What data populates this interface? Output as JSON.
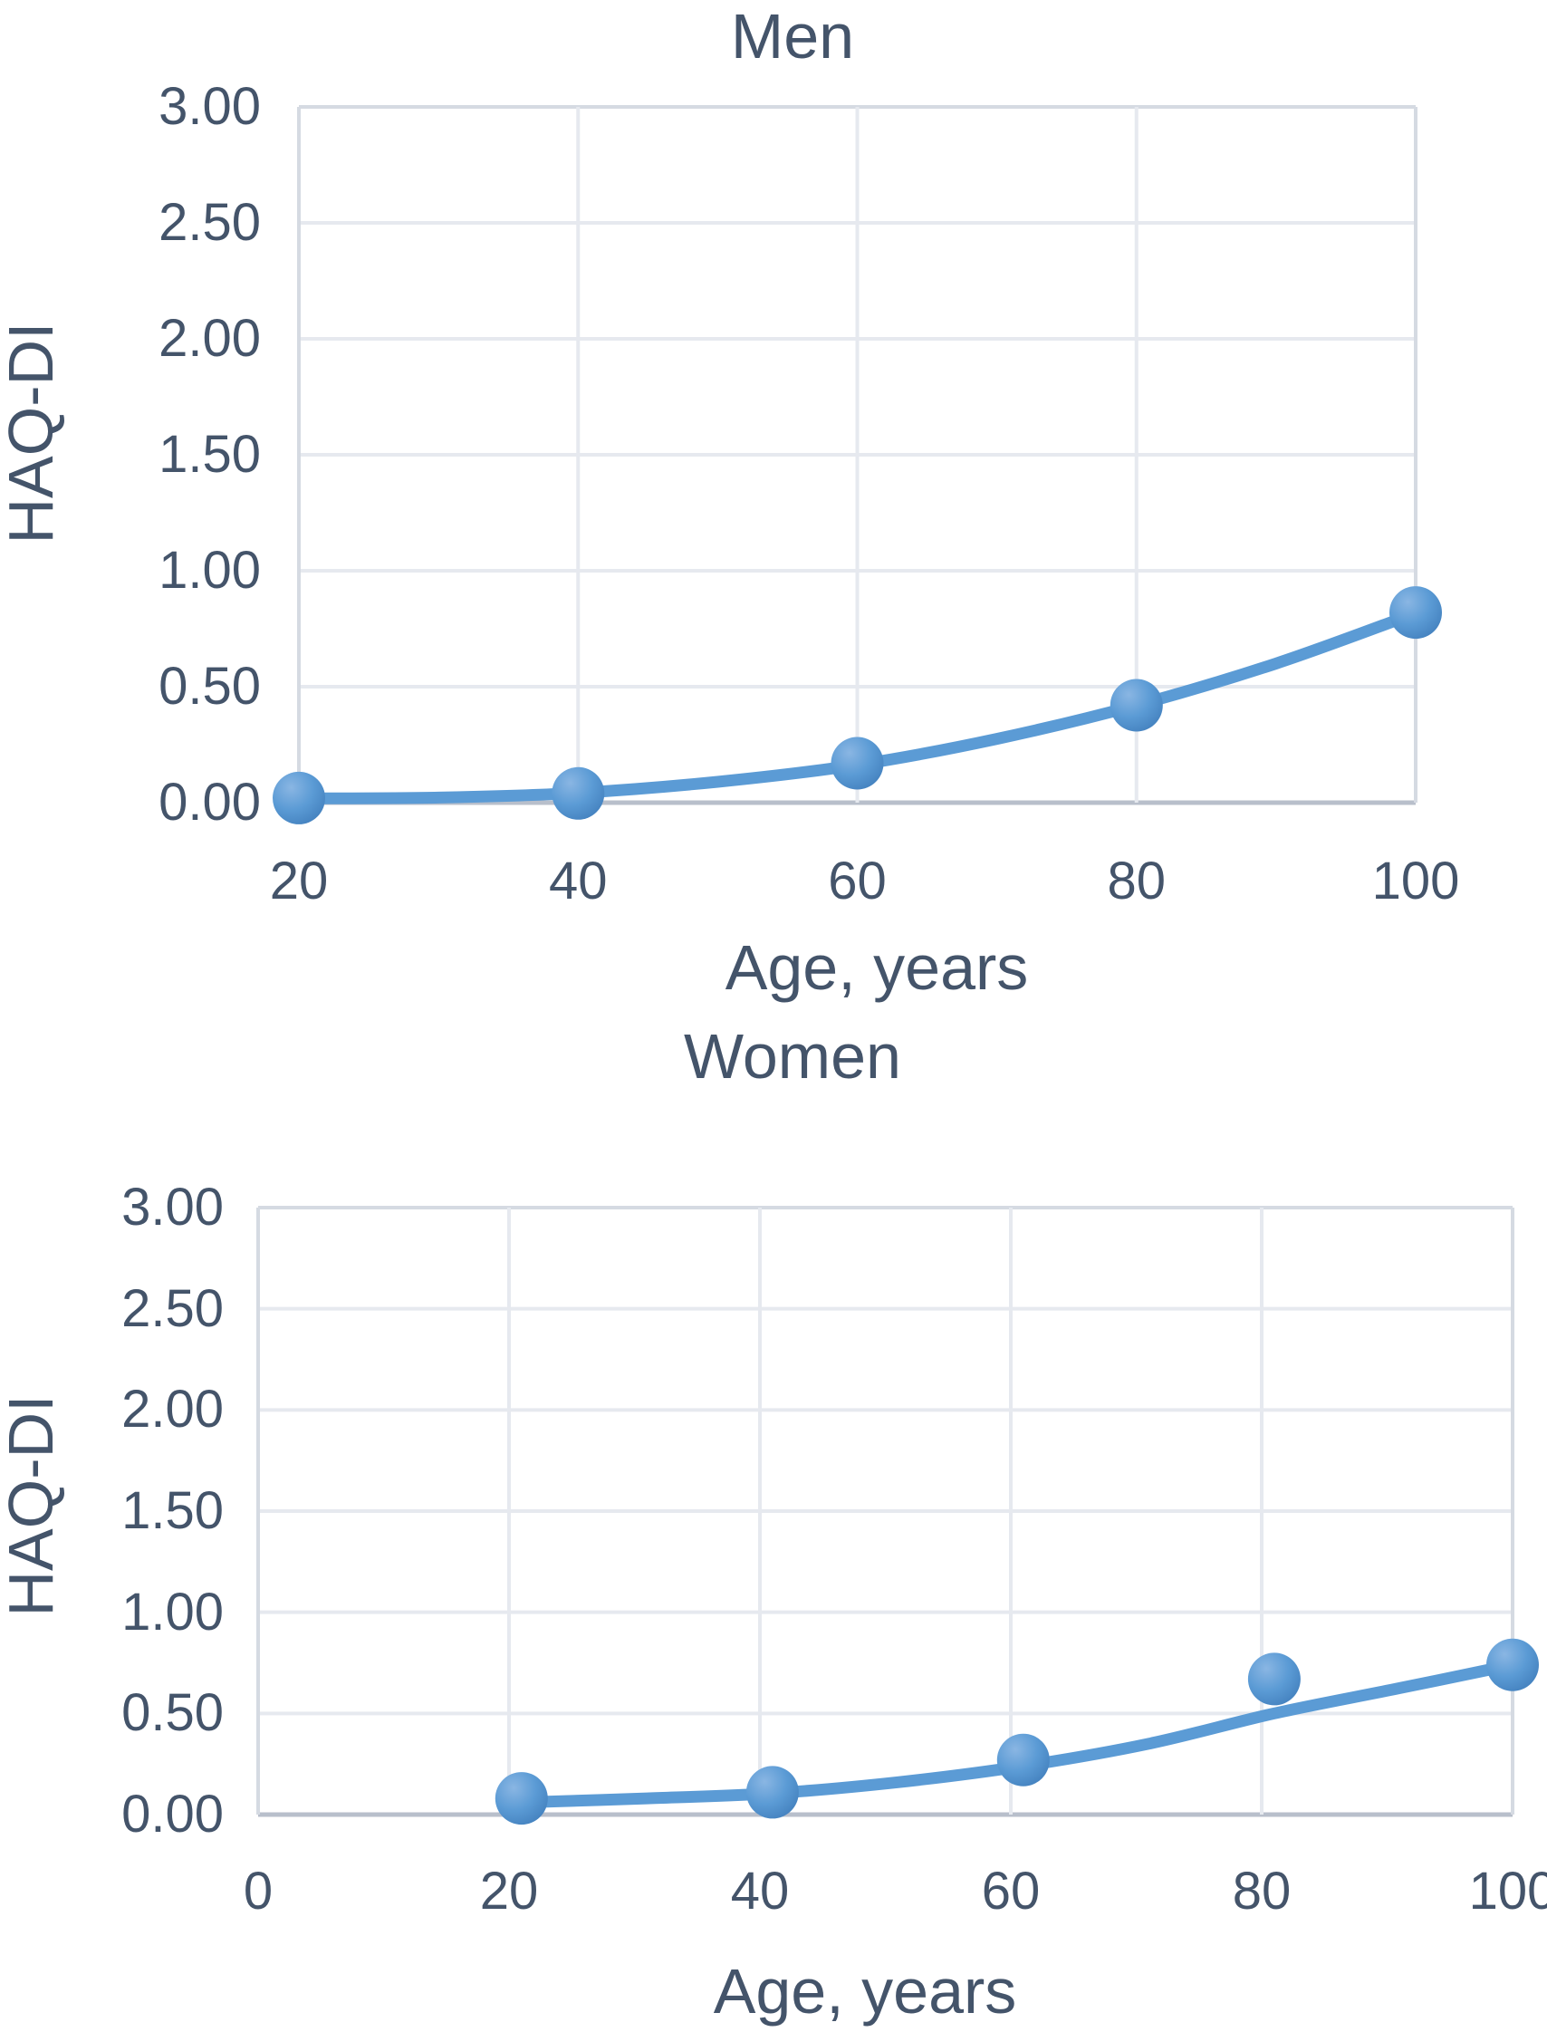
{
  "page": {
    "background": "#ffffff"
  },
  "chart_data": [
    {
      "type": "scatter",
      "title": "Men",
      "xlabel": "Age, years",
      "ylabel": "HAQ-DI",
      "x": [
        20,
        40,
        60,
        80,
        100
      ],
      "y": [
        0.02,
        0.04,
        0.17,
        0.42,
        0.82
      ],
      "trend_line": [
        [
          20,
          0.018
        ],
        [
          30,
          0.022
        ],
        [
          40,
          0.042
        ],
        [
          50,
          0.09
        ],
        [
          60,
          0.163
        ],
        [
          70,
          0.275
        ],
        [
          80,
          0.42
        ],
        [
          90,
          0.6
        ],
        [
          100,
          0.817
        ]
      ],
      "x_ticks": [
        "20",
        "40",
        "60",
        "80",
        "100"
      ],
      "x_tick_values": [
        20,
        40,
        60,
        80,
        100
      ],
      "y_ticks": [
        "3.00",
        "2.50",
        "2.00",
        "1.50",
        "1.00",
        "0.50",
        "0.00"
      ],
      "y_tick_values": [
        3,
        2.5,
        2,
        1.5,
        1,
        0.5,
        0
      ],
      "xlim": [
        20,
        100
      ],
      "ylim": [
        0,
        3
      ],
      "grid": true,
      "legend": null
    },
    {
      "type": "scatter",
      "title": "Women",
      "xlabel": "Age, years",
      "ylabel": "HAQ-DI",
      "x": [
        21,
        41,
        61,
        81,
        100
      ],
      "y": [
        0.08,
        0.11,
        0.27,
        0.67,
        0.74
      ],
      "trend_line": [
        [
          21,
          0.06
        ],
        [
          31,
          0.08
        ],
        [
          41,
          0.105
        ],
        [
          51,
          0.16
        ],
        [
          61,
          0.24
        ],
        [
          71,
          0.35
        ],
        [
          81,
          0.5
        ],
        [
          91,
          0.625
        ],
        [
          100,
          0.74
        ]
      ],
      "x_ticks": [
        "0",
        "20",
        "40",
        "60",
        "80",
        "100"
      ],
      "x_tick_values": [
        0,
        20,
        40,
        60,
        80,
        100
      ],
      "y_ticks": [
        "3.00",
        "2.50",
        "2.00",
        "1.50",
        "1.00",
        "0.50",
        "0.00"
      ],
      "y_tick_values": [
        3,
        2.5,
        2,
        1.5,
        1,
        0.5,
        0
      ],
      "xlim": [
        0,
        100
      ],
      "ylim": [
        0,
        3
      ],
      "grid": true,
      "legend": null
    }
  ],
  "colors": {
    "text": "#44546a",
    "line": "#5b9bd5",
    "marker_light": "#8ab6e3",
    "marker_mid": "#5b9bd5",
    "marker_dark": "#3f7cba",
    "grid": "#e6e9ef",
    "border": "#d5dae2",
    "axis": "#b8bfcb",
    "background": "#ffffff"
  }
}
